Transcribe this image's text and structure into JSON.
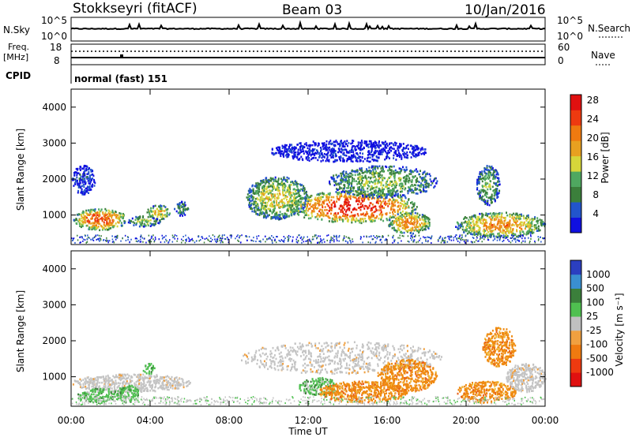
{
  "header": {
    "station": "Stokkseyri (fitACF)",
    "beam": "Beam 03",
    "date": "10/Jan/2016"
  },
  "top_panels": {
    "nsky_label": "N.Sky",
    "nsky_ticks": [
      "10^5",
      "10^0"
    ],
    "nsearch_label": "N.Search",
    "nsearch_ticks": [
      "10^5",
      "10^0"
    ],
    "freq_label_1": "Freq.",
    "freq_label_2": "[MHz]",
    "freq_ticks": [
      "18",
      "8"
    ],
    "nave_label": "Nave",
    "nave_ticks": [
      "60",
      "0"
    ],
    "cpid_label": "CPID",
    "cpid_text": "normal (fast) 151"
  },
  "chart_data": [
    {
      "type": "heatmap",
      "panel": "power",
      "ylabel": "Slant Range [km]",
      "xlabel": "Time UT",
      "xticks": [
        "00:00",
        "04:00",
        "08:00",
        "12:00",
        "16:00",
        "20:00",
        "00:00"
      ],
      "xlim": [
        0,
        24
      ],
      "yticks": [
        "1000",
        "2000",
        "3000",
        "4000"
      ],
      "ylim": [
        180,
        4500
      ],
      "colorbar": {
        "label": "Power [dB]",
        "ticks": [
          "4",
          "8",
          "12",
          "16",
          "20",
          "24",
          "28"
        ],
        "range": [
          0,
          30
        ],
        "colors": [
          "#1010e0",
          "#2255cc",
          "#3b7f3b",
          "#4fa860",
          "#d6d63a",
          "#e8a020",
          "#ef7a10",
          "#ee3a10",
          "#e01010"
        ]
      },
      "regions": [
        {
          "t": [
            0.1,
            2.8
          ],
          "r": [
            600,
            1200
          ],
          "level": 0.85
        },
        {
          "t": [
            0.0,
            1.2
          ],
          "r": [
            1600,
            2400
          ],
          "level": 0.15
        },
        {
          "t": [
            2.8,
            4.5
          ],
          "r": [
            700,
            1000
          ],
          "level": 0.45
        },
        {
          "t": [
            3.8,
            5.0
          ],
          "r": [
            900,
            1300
          ],
          "level": 0.6
        },
        {
          "t": [
            5.2,
            5.9
          ],
          "r": [
            1000,
            1400
          ],
          "level": 0.35
        },
        {
          "t": [
            8.8,
            12.0
          ],
          "r": [
            900,
            2100
          ],
          "level": 0.55
        },
        {
          "t": [
            11.0,
            17.5
          ],
          "r": [
            800,
            1700
          ],
          "level": 0.95
        },
        {
          "t": [
            13.0,
            18.5
          ],
          "r": [
            1500,
            2400
          ],
          "level": 0.45
        },
        {
          "t": [
            16.0,
            18.2
          ],
          "r": [
            500,
            1100
          ],
          "level": 0.75
        },
        {
          "t": [
            19.4,
            24.0
          ],
          "r": [
            400,
            1100
          ],
          "level": 0.7
        },
        {
          "t": [
            20.5,
            21.7
          ],
          "r": [
            1300,
            2400
          ],
          "level": 0.4
        },
        {
          "t": [
            10.0,
            18.0
          ],
          "r": [
            2500,
            3100
          ],
          "level": 0.05
        }
      ]
    },
    {
      "type": "heatmap",
      "panel": "velocity",
      "ylabel": "Slant Range [km]",
      "xlabel": "Time UT",
      "xticks": [
        "00:00",
        "04:00",
        "08:00",
        "12:00",
        "16:00",
        "20:00",
        "00:00"
      ],
      "xlim": [
        0,
        24
      ],
      "yticks": [
        "1000",
        "2000",
        "3000",
        "4000"
      ],
      "ylim": [
        180,
        4500
      ],
      "colorbar": {
        "label": "Velocity [m s⁻¹]",
        "ticks": [
          "1000",
          "500",
          "100",
          "25",
          "-25",
          "-100",
          "-500",
          "-1000"
        ],
        "colors": [
          "#2b3fc0",
          "#3a8fd0",
          "#3b7f3b",
          "#4fc050",
          "#c0c0c0",
          "#f0a040",
          "#ef7a10",
          "#ee3a10",
          "#e01010"
        ]
      },
      "regions": [
        {
          "t": [
            0.0,
            6.0
          ],
          "r": [
            600,
            1100
          ],
          "category": "ground"
        },
        {
          "t": [
            0.3,
            2.6
          ],
          "r": [
            300,
            700
          ],
          "category": "green"
        },
        {
          "t": [
            2.3,
            3.4
          ],
          "r": [
            300,
            800
          ],
          "category": "green"
        },
        {
          "t": [
            3.6,
            4.2
          ],
          "r": [
            1100,
            1400
          ],
          "category": "green"
        },
        {
          "t": [
            8.5,
            18.8
          ],
          "r": [
            1100,
            2000
          ],
          "category": "ground"
        },
        {
          "t": [
            11.5,
            13.5
          ],
          "r": [
            500,
            1000
          ],
          "category": "green"
        },
        {
          "t": [
            12.5,
            17.0
          ],
          "r": [
            300,
            900
          ],
          "category": "orange"
        },
        {
          "t": [
            15.5,
            18.5
          ],
          "r": [
            600,
            1500
          ],
          "category": "orange"
        },
        {
          "t": [
            19.5,
            22.5
          ],
          "r": [
            300,
            900
          ],
          "category": "orange"
        },
        {
          "t": [
            20.8,
            22.5
          ],
          "r": [
            1300,
            2400
          ],
          "category": "orange"
        },
        {
          "t": [
            22.0,
            24.0
          ],
          "r": [
            600,
            1400
          ],
          "category": "ground"
        }
      ]
    }
  ]
}
